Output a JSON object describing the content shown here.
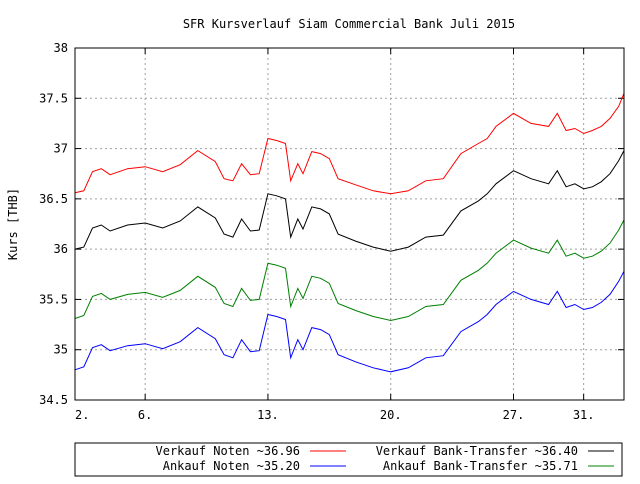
{
  "chart_data": {
    "type": "line",
    "title": "SFR Kursverlauf Siam Commercial Bank Juli 2015",
    "xlabel": "",
    "ylabel": "Kurs [THB]",
    "ylim": [
      34.5,
      38
    ],
    "yticks": [
      "34.5",
      "35",
      "35.5",
      "36",
      "36.5",
      "37",
      "37.5",
      "38"
    ],
    "xticks": [
      "2.",
      "6.",
      "13.",
      "20.",
      "27.",
      "31."
    ],
    "xtick_days": [
      2,
      6,
      13,
      20,
      27,
      31
    ],
    "xlim": [
      2,
      33.3
    ],
    "grid": true,
    "legend_position": "bottom",
    "colors": {
      "verkauf_noten": "#ff0000",
      "ankauf_noten": "#0000ff",
      "verkauf_transfer": "#000000",
      "ankauf_transfer": "#008000"
    },
    "x": [
      2,
      2.5,
      3,
      3.5,
      4,
      5,
      6,
      7,
      8,
      9,
      10,
      10.5,
      11,
      11.5,
      12,
      12.5,
      13,
      13.5,
      14,
      14.3,
      14.7,
      15,
      15.5,
      16,
      16.5,
      17,
      18,
      19,
      20,
      21,
      22,
      23,
      24,
      25,
      25.5,
      26,
      27,
      28,
      29,
      29.5,
      30,
      30.5,
      31,
      31.5,
      32,
      32.5,
      33,
      33.3
    ],
    "series": [
      {
        "name": "Verkauf Noten ~36.96",
        "color": "#ff0000",
        "values": [
          36.56,
          36.58,
          36.77,
          36.8,
          36.74,
          36.8,
          36.82,
          36.77,
          36.84,
          36.98,
          36.87,
          36.7,
          36.68,
          36.85,
          36.74,
          36.75,
          37.1,
          37.08,
          37.05,
          36.68,
          36.85,
          36.75,
          36.97,
          36.95,
          36.9,
          36.7,
          36.64,
          36.58,
          36.55,
          36.58,
          36.68,
          36.7,
          36.95,
          37.05,
          37.1,
          37.22,
          37.35,
          37.25,
          37.22,
          37.35,
          37.18,
          37.2,
          37.15,
          37.18,
          37.22,
          37.3,
          37.42,
          37.55
        ]
      },
      {
        "name": "Ankauf Noten ~35.20",
        "color": "#0000ff",
        "values": [
          34.8,
          34.83,
          35.02,
          35.05,
          34.99,
          35.04,
          35.06,
          35.01,
          35.08,
          35.22,
          35.11,
          34.95,
          34.92,
          35.1,
          34.98,
          34.99,
          35.35,
          35.33,
          35.3,
          34.92,
          35.1,
          35.0,
          35.22,
          35.2,
          35.15,
          34.95,
          34.88,
          34.82,
          34.78,
          34.82,
          34.92,
          34.94,
          35.18,
          35.28,
          35.35,
          35.45,
          35.58,
          35.5,
          35.45,
          35.58,
          35.42,
          35.45,
          35.4,
          35.42,
          35.47,
          35.55,
          35.68,
          35.78
        ]
      },
      {
        "name": "Verkauf Bank-Transfer ~36.40",
        "color": "#000000",
        "values": [
          36.0,
          36.02,
          36.21,
          36.24,
          36.18,
          36.24,
          36.26,
          36.21,
          36.28,
          36.42,
          36.31,
          36.15,
          36.12,
          36.3,
          36.18,
          36.19,
          36.55,
          36.53,
          36.5,
          36.12,
          36.3,
          36.2,
          36.42,
          36.4,
          36.35,
          36.15,
          36.08,
          36.02,
          35.98,
          36.02,
          36.12,
          36.14,
          36.38,
          36.48,
          36.55,
          36.65,
          36.78,
          36.7,
          36.65,
          36.78,
          36.62,
          36.65,
          36.6,
          36.62,
          36.67,
          36.75,
          36.88,
          36.98
        ]
      },
      {
        "name": "Ankauf Bank-Transfer ~35.71",
        "color": "#008000",
        "values": [
          35.31,
          35.34,
          35.53,
          35.56,
          35.5,
          35.55,
          35.57,
          35.52,
          35.59,
          35.73,
          35.62,
          35.46,
          35.43,
          35.61,
          35.49,
          35.5,
          35.86,
          35.84,
          35.81,
          35.43,
          35.61,
          35.51,
          35.73,
          35.71,
          35.66,
          35.46,
          35.39,
          35.33,
          35.29,
          35.33,
          35.43,
          35.45,
          35.69,
          35.79,
          35.86,
          35.96,
          36.09,
          36.01,
          35.96,
          36.09,
          35.93,
          35.96,
          35.91,
          35.93,
          35.98,
          36.06,
          36.19,
          36.29
        ]
      }
    ],
    "legend": [
      {
        "label": "Verkauf Noten ~36.96",
        "color": "#ff0000"
      },
      {
        "label": "Verkauf Bank-Transfer ~36.40",
        "color": "#000000"
      },
      {
        "label": "Ankauf Noten ~35.20",
        "color": "#0000ff"
      },
      {
        "label": "Ankauf Bank-Transfer ~35.71",
        "color": "#008000"
      }
    ]
  }
}
